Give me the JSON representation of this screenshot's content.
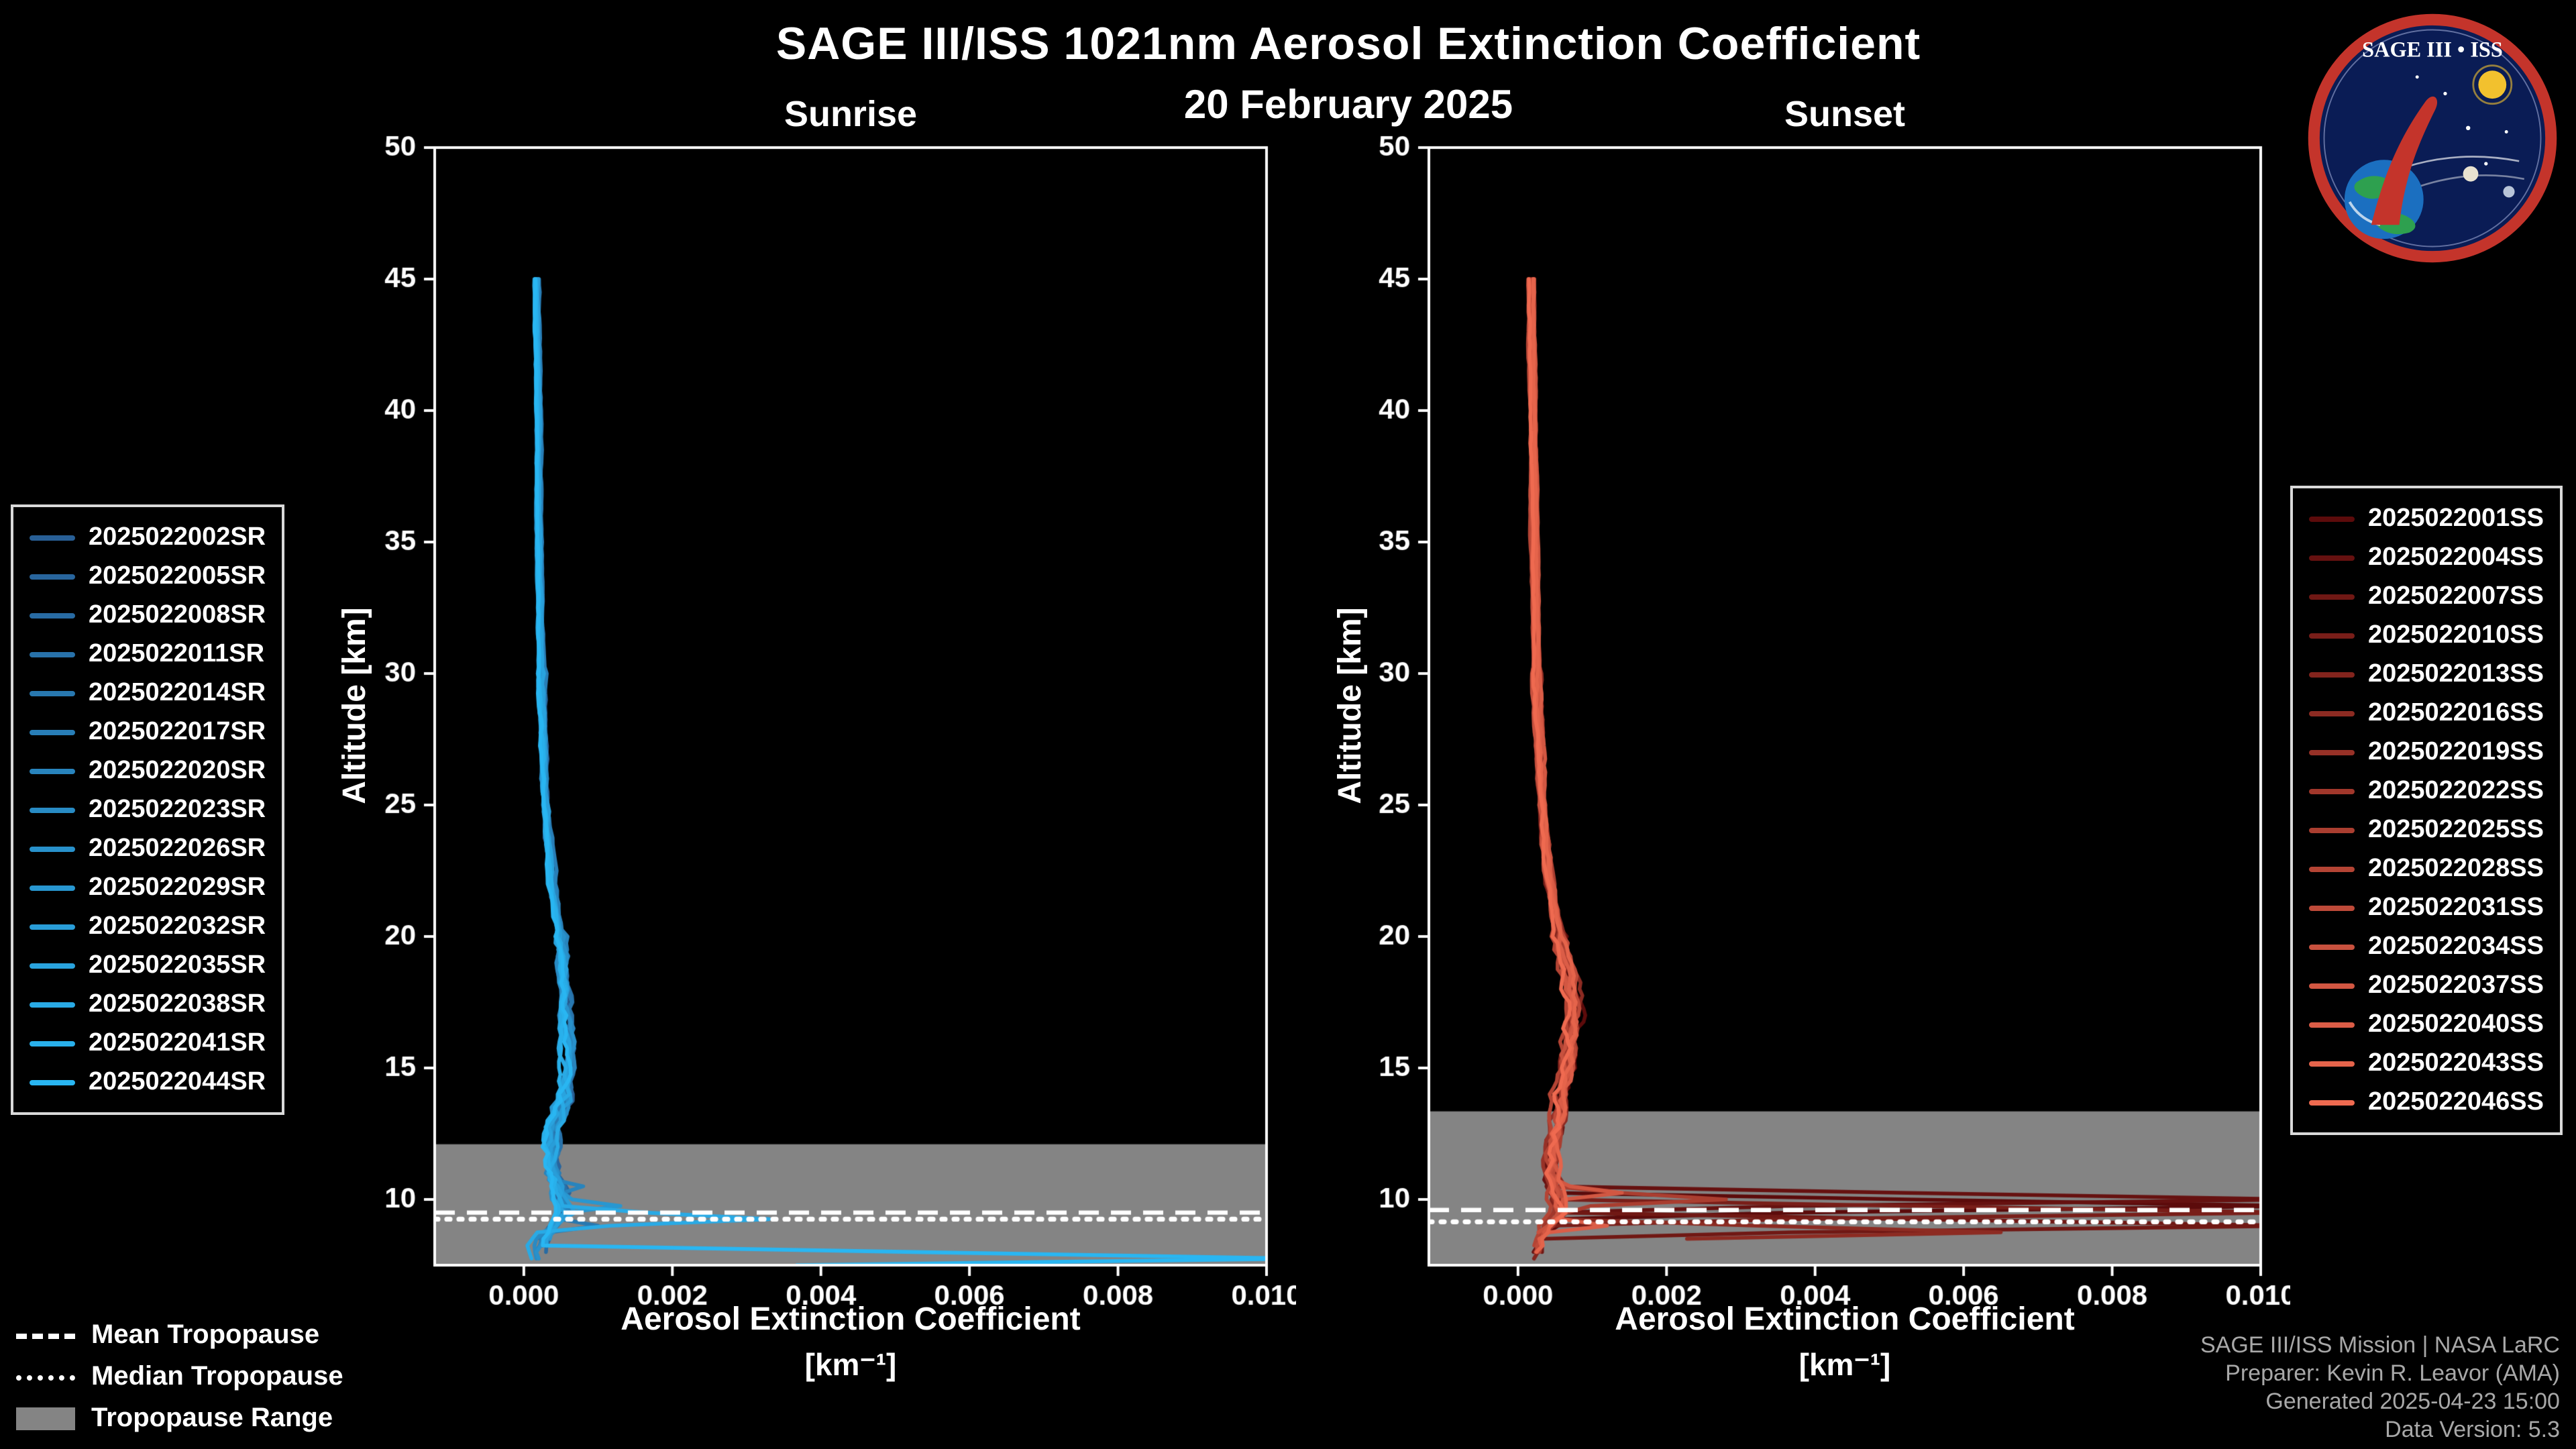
{
  "title": "SAGE III/ISS 1021nm Aerosol Extinction Coefficient",
  "date": "20 February 2025",
  "logo": {
    "title": "SAGE III • ISS"
  },
  "tropopause_legend": {
    "mean": "Mean Tropopause",
    "median": "Median Tropopause",
    "range": "Tropopause Range"
  },
  "credits": [
    "SAGE III/ISS Mission | NASA LaRC",
    "Preparer: Kevin R. Leavor (AMA)",
    "Generated 2025-04-23 15:00",
    "Data Version: 5.3"
  ],
  "colors": {
    "background": "#000000",
    "foreground": "#ffffff",
    "tropopause_range": "#848484",
    "credits_text": "#a8a8a8",
    "sunrise_accent": "#29B6F2",
    "sunset_accent": "#EF6A50"
  },
  "chart_data": [
    {
      "type": "line",
      "title": "Sunrise",
      "xlabel": "Aerosol Extinction Coefficient",
      "xlabel_units": "[km⁻¹]",
      "ylabel": "Altitude [km]",
      "xlim": [
        -0.0012,
        0.01
      ],
      "ylim": [
        7.5,
        50
      ],
      "xticks": [
        0.0,
        0.002,
        0.004,
        0.006,
        0.008,
        0.01
      ],
      "xtick_labels": [
        "0.000",
        "0.002",
        "0.004",
        "0.006",
        "0.008",
        "0.010"
      ],
      "yticks": [
        10,
        15,
        20,
        25,
        30,
        35,
        40,
        45,
        50
      ],
      "grid": false,
      "legend_position": "left",
      "mean_tropopause_km": 9.5,
      "median_tropopause_km": 9.25,
      "tropopause_range_km": [
        7.5,
        12.1
      ],
      "series": [
        {
          "label": "2025022002SR",
          "color": "#285F96"
        },
        {
          "label": "2025022005SR",
          "color": "#28659D"
        },
        {
          "label": "2025022008SR",
          "color": "#286BA3"
        },
        {
          "label": "2025022011SR",
          "color": "#2872AA"
        },
        {
          "label": "2025022014SR",
          "color": "#2878B0"
        },
        {
          "label": "2025022017SR",
          "color": "#287EB7"
        },
        {
          "label": "2025022020SR",
          "color": "#2884BD"
        },
        {
          "label": "2025022023SR",
          "color": "#288BC4"
        },
        {
          "label": "2025022026SR",
          "color": "#2891CB"
        },
        {
          "label": "2025022029SR",
          "color": "#2897D1"
        },
        {
          "label": "2025022032SR",
          "color": "#299DD8"
        },
        {
          "label": "2025022035SR",
          "color": "#29A3DE"
        },
        {
          "label": "2025022038SR",
          "color": "#29AAE5"
        },
        {
          "label": "2025022041SR",
          "color": "#29B0EB"
        },
        {
          "label": "2025022044SR",
          "color": "#29B6F2"
        }
      ],
      "base_profile": {
        "altitude_km": [
          45,
          40,
          35,
          30,
          25,
          22,
          20,
          18,
          16,
          15,
          14,
          13,
          12,
          11,
          10,
          9.5,
          9,
          8.5,
          8,
          7.5
        ],
        "extinction": [
          0.00018,
          0.0002,
          0.00021,
          0.00024,
          0.0003,
          0.00038,
          0.0005,
          0.00055,
          0.0006,
          0.00062,
          0.00055,
          0.00045,
          0.0004,
          0.00042,
          0.0005,
          0.00055,
          0.0004,
          0.00028,
          0.0002,
          0.00018
        ]
      },
      "cloud_spikes": [
        {
          "series": 12,
          "altitude_km": 9.35,
          "extinction": 0.0033
        },
        {
          "series": 14,
          "altitude_km": 7.65,
          "extinction": 0.0105
        },
        {
          "series": 9,
          "altitude_km": 9.85,
          "extinction": 0.0013
        },
        {
          "series": 4,
          "altitude_km": 9.05,
          "extinction": 0.001
        },
        {
          "series": 6,
          "altitude_km": 10.4,
          "extinction": 0.0008
        }
      ]
    },
    {
      "type": "line",
      "title": "Sunset",
      "xlabel": "Aerosol Extinction Coefficient",
      "xlabel_units": "[km⁻¹]",
      "ylabel": "Altitude [km]",
      "xlim": [
        -0.0012,
        0.01
      ],
      "ylim": [
        7.5,
        50
      ],
      "xticks": [
        0.0,
        0.002,
        0.004,
        0.006,
        0.008,
        0.01
      ],
      "xtick_labels": [
        "0.000",
        "0.002",
        "0.004",
        "0.006",
        "0.008",
        "0.010"
      ],
      "yticks": [
        10,
        15,
        20,
        25,
        30,
        35,
        40,
        45,
        50
      ],
      "grid": false,
      "legend_position": "right",
      "mean_tropopause_km": 9.6,
      "median_tropopause_km": 9.15,
      "tropopause_range_km": [
        7.5,
        13.35
      ],
      "series": [
        {
          "label": "2025022001SS",
          "color": "#5C0B0B"
        },
        {
          "label": "2025022004SS",
          "color": "#661110"
        },
        {
          "label": "2025022007SS",
          "color": "#701814"
        },
        {
          "label": "2025022010SS",
          "color": "#791E19"
        },
        {
          "label": "2025022013SS",
          "color": "#83241D"
        },
        {
          "label": "2025022016SS",
          "color": "#8D2B22"
        },
        {
          "label": "2025022019SS",
          "color": "#973127"
        },
        {
          "label": "2025022022SS",
          "color": "#A1372B"
        },
        {
          "label": "2025022025SS",
          "color": "#AA3E30"
        },
        {
          "label": "2025022028SS",
          "color": "#B44434"
        },
        {
          "label": "2025022031SS",
          "color": "#BE4A39"
        },
        {
          "label": "2025022034SS",
          "color": "#C8513E"
        },
        {
          "label": "2025022037SS",
          "color": "#D25742"
        },
        {
          "label": "2025022040SS",
          "color": "#DB5D47"
        },
        {
          "label": "2025022043SS",
          "color": "#E5644B"
        },
        {
          "label": "2025022046SS",
          "color": "#EF6A50"
        }
      ],
      "base_profile": {
        "altitude_km": [
          45,
          40,
          35,
          30,
          25,
          22,
          20,
          18,
          17,
          16,
          15,
          14,
          13,
          12,
          11,
          10,
          9.5,
          9,
          8.5,
          8,
          7.5
        ],
        "extinction": [
          0.00018,
          0.0002,
          0.00022,
          0.00025,
          0.00032,
          0.00042,
          0.00055,
          0.0007,
          0.00075,
          0.0007,
          0.00065,
          0.00055,
          0.0005,
          0.00045,
          0.00045,
          0.0005,
          0.00055,
          0.00045,
          0.0003,
          0.00025,
          0.0002
        ]
      },
      "cloud_spikes": [
        {
          "series": 0,
          "altitude_km": 9.65,
          "extinction": 0.0105
        },
        {
          "series": 1,
          "altitude_km": 10.05,
          "extinction": 0.0105
        },
        {
          "series": 3,
          "altitude_km": 9.4,
          "extinction": 0.0105
        },
        {
          "series": 2,
          "altitude_km": 8.9,
          "extinction": 0.0105
        },
        {
          "series": 5,
          "altitude_km": 8.7,
          "extinction": 0.0065
        },
        {
          "series": 8,
          "altitude_km": 9.9,
          "extinction": 0.0028
        },
        {
          "series": 12,
          "altitude_km": 10.35,
          "extinction": 0.0014
        },
        {
          "series": 13,
          "altitude_km": 9.1,
          "extinction": 0.0012
        }
      ]
    }
  ]
}
